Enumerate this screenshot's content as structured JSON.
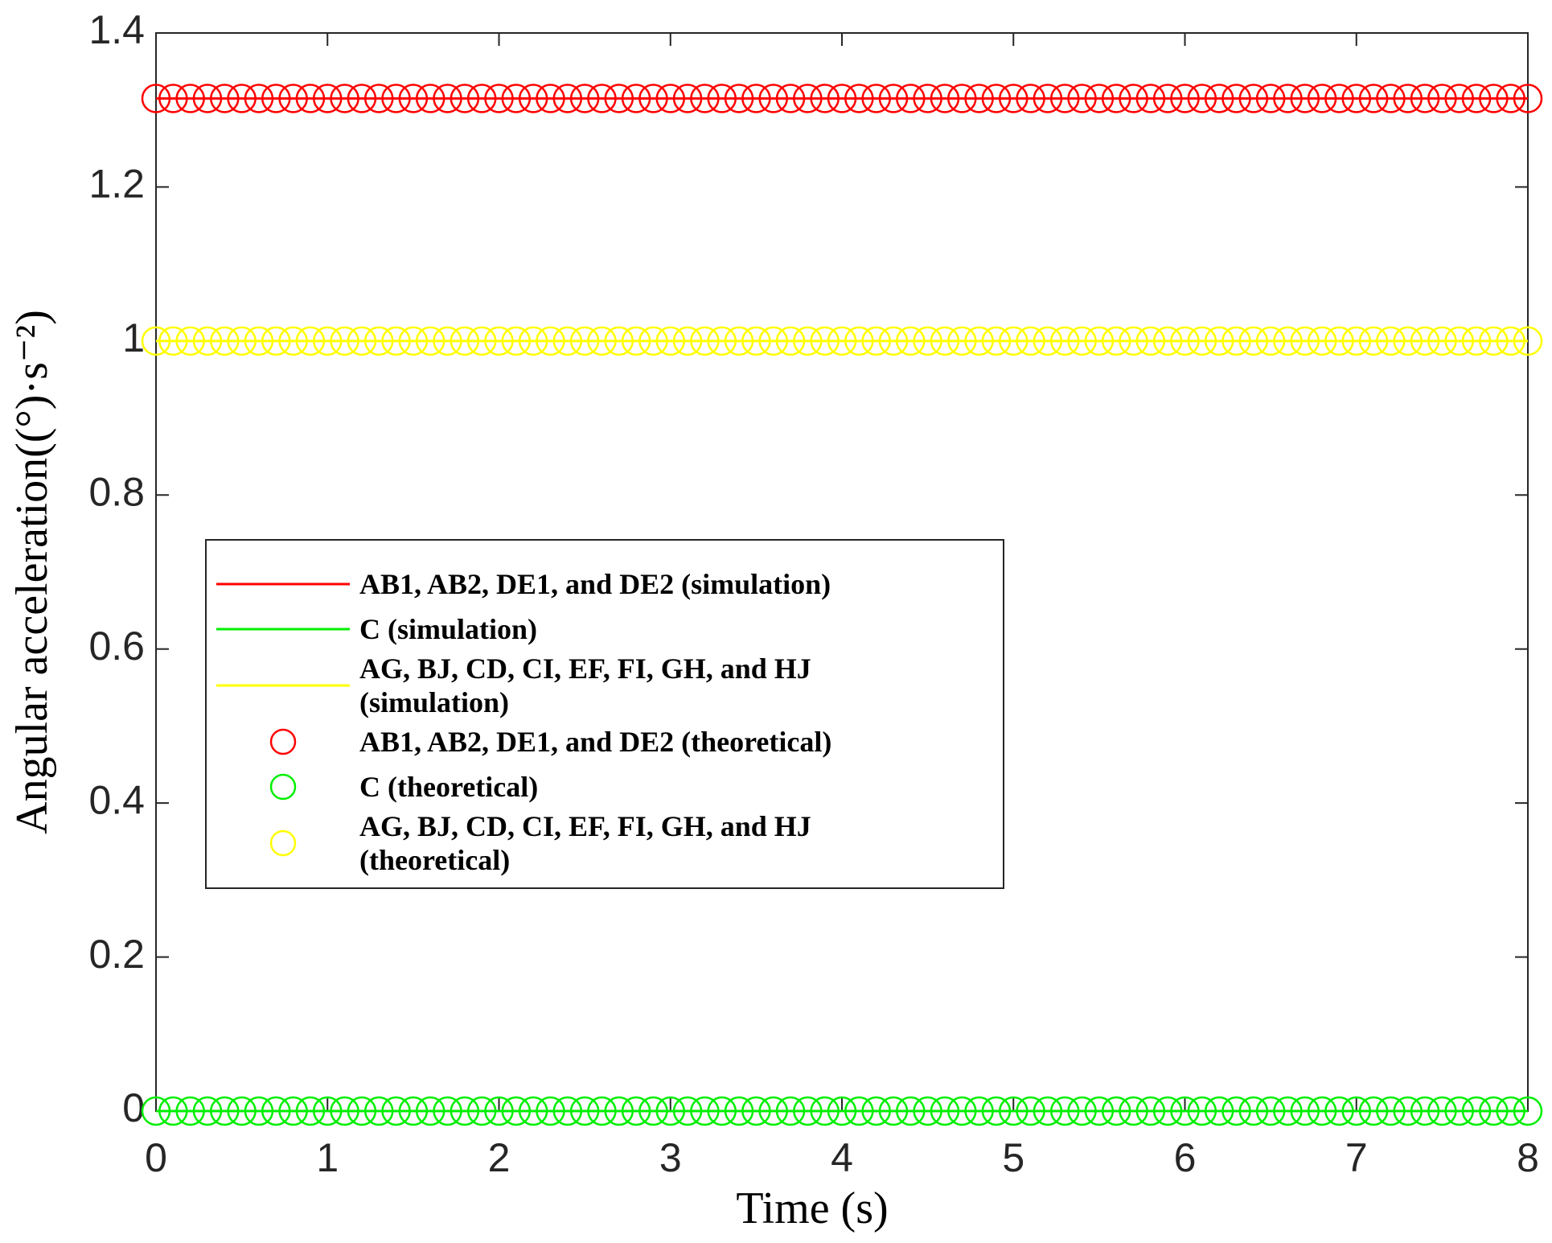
{
  "chart_data": {
    "type": "line",
    "xlabel": "Time (s)",
    "ylabel": "Angular acceleration((°)·s⁻²)",
    "xlim": [
      0,
      8
    ],
    "ylim": [
      0,
      1.4
    ],
    "xticks": [
      0,
      1,
      2,
      3,
      4,
      5,
      6,
      7,
      8
    ],
    "yticks": [
      0,
      0.2,
      0.4,
      0.6,
      0.8,
      1,
      1.2,
      1.4
    ],
    "legend": "middle-left",
    "x": [
      0,
      0.1,
      0.2,
      0.3,
      0.4,
      0.5,
      0.6,
      0.7,
      0.8,
      0.9,
      1,
      1.1,
      1.2,
      1.3,
      1.4,
      1.5,
      1.6,
      1.7,
      1.8,
      1.9,
      2,
      2.1,
      2.2,
      2.3,
      2.4,
      2.5,
      2.6,
      2.7,
      2.8,
      2.9,
      3,
      3.1,
      3.2,
      3.3,
      3.4,
      3.5,
      3.6,
      3.7,
      3.8,
      3.9,
      4,
      4.1,
      4.2,
      4.3,
      4.4,
      4.5,
      4.6,
      4.7,
      4.8,
      4.9,
      5,
      5.1,
      5.2,
      5.3,
      5.4,
      5.5,
      5.6,
      5.7,
      5.8,
      5.9,
      6,
      6.1,
      6.2,
      6.3,
      6.4,
      6.5,
      6.6,
      6.7,
      6.8,
      6.9,
      7,
      7.1,
      7.2,
      7.3,
      7.4,
      7.5,
      7.6,
      7.7,
      7.8,
      7.9,
      8
    ],
    "series": [
      {
        "name": "AB1, AB2, DE1, and DE2 (simulation)",
        "color": "#ff0000",
        "mode": "line",
        "values": [
          1.315,
          1.315,
          1.315,
          1.315,
          1.315,
          1.315,
          1.315,
          1.315,
          1.315,
          1.315,
          1.315,
          1.315,
          1.315,
          1.315,
          1.315,
          1.315,
          1.315,
          1.315,
          1.315,
          1.315,
          1.315,
          1.315,
          1.315,
          1.315,
          1.315,
          1.315,
          1.315,
          1.315,
          1.315,
          1.315,
          1.315,
          1.315,
          1.315,
          1.315,
          1.315,
          1.315,
          1.315,
          1.315,
          1.315,
          1.315,
          1.315,
          1.315,
          1.315,
          1.315,
          1.315,
          1.315,
          1.315,
          1.315,
          1.315,
          1.315,
          1.315,
          1.315,
          1.315,
          1.315,
          1.315,
          1.315,
          1.315,
          1.315,
          1.315,
          1.315,
          1.315,
          1.315,
          1.315,
          1.315,
          1.315,
          1.315,
          1.315,
          1.315,
          1.315,
          1.315,
          1.315,
          1.315,
          1.315,
          1.315,
          1.315,
          1.315,
          1.315,
          1.315,
          1.315,
          1.315,
          1.315
        ]
      },
      {
        "name": "C (simulation)",
        "color": "#00ee00",
        "mode": "line",
        "values": [
          0,
          0,
          0,
          0,
          0,
          0,
          0,
          0,
          0,
          0,
          0,
          0,
          0,
          0,
          0,
          0,
          0,
          0,
          0,
          0,
          0,
          0,
          0,
          0,
          0,
          0,
          0,
          0,
          0,
          0,
          0,
          0,
          0,
          0,
          0,
          0,
          0,
          0,
          0,
          0,
          0,
          0,
          0,
          0,
          0,
          0,
          0,
          0,
          0,
          0,
          0,
          0,
          0,
          0,
          0,
          0,
          0,
          0,
          0,
          0,
          0,
          0,
          0,
          0,
          0,
          0,
          0,
          0,
          0,
          0,
          0,
          0,
          0,
          0,
          0,
          0,
          0,
          0,
          0,
          0,
          0
        ]
      },
      {
        "name": "AG, BJ, CD, CI, EF, FI, GH, and HJ (simulation)",
        "color": "#ffff00",
        "mode": "line",
        "values": [
          1,
          1,
          1,
          1,
          1,
          1,
          1,
          1,
          1,
          1,
          1,
          1,
          1,
          1,
          1,
          1,
          1,
          1,
          1,
          1,
          1,
          1,
          1,
          1,
          1,
          1,
          1,
          1,
          1,
          1,
          1,
          1,
          1,
          1,
          1,
          1,
          1,
          1,
          1,
          1,
          1,
          1,
          1,
          1,
          1,
          1,
          1,
          1,
          1,
          1,
          1,
          1,
          1,
          1,
          1,
          1,
          1,
          1,
          1,
          1,
          1,
          1,
          1,
          1,
          1,
          1,
          1,
          1,
          1,
          1,
          1,
          1,
          1,
          1,
          1,
          1,
          1,
          1,
          1,
          1,
          1
        ]
      },
      {
        "name": "AB1, AB2, DE1, and DE2 (theoretical)",
        "color": "#ff0000",
        "mode": "markers",
        "values": [
          1.315,
          1.315,
          1.315,
          1.315,
          1.315,
          1.315,
          1.315,
          1.315,
          1.315,
          1.315,
          1.315,
          1.315,
          1.315,
          1.315,
          1.315,
          1.315,
          1.315,
          1.315,
          1.315,
          1.315,
          1.315,
          1.315,
          1.315,
          1.315,
          1.315,
          1.315,
          1.315,
          1.315,
          1.315,
          1.315,
          1.315,
          1.315,
          1.315,
          1.315,
          1.315,
          1.315,
          1.315,
          1.315,
          1.315,
          1.315,
          1.315,
          1.315,
          1.315,
          1.315,
          1.315,
          1.315,
          1.315,
          1.315,
          1.315,
          1.315,
          1.315,
          1.315,
          1.315,
          1.315,
          1.315,
          1.315,
          1.315,
          1.315,
          1.315,
          1.315,
          1.315,
          1.315,
          1.315,
          1.315,
          1.315,
          1.315,
          1.315,
          1.315,
          1.315,
          1.315,
          1.315,
          1.315,
          1.315,
          1.315,
          1.315,
          1.315,
          1.315,
          1.315,
          1.315,
          1.315,
          1.315
        ]
      },
      {
        "name": "C (theoretical)",
        "color": "#00ee00",
        "mode": "markers",
        "values": [
          0,
          0,
          0,
          0,
          0,
          0,
          0,
          0,
          0,
          0,
          0,
          0,
          0,
          0,
          0,
          0,
          0,
          0,
          0,
          0,
          0,
          0,
          0,
          0,
          0,
          0,
          0,
          0,
          0,
          0,
          0,
          0,
          0,
          0,
          0,
          0,
          0,
          0,
          0,
          0,
          0,
          0,
          0,
          0,
          0,
          0,
          0,
          0,
          0,
          0,
          0,
          0,
          0,
          0,
          0,
          0,
          0,
          0,
          0,
          0,
          0,
          0,
          0,
          0,
          0,
          0,
          0,
          0,
          0,
          0,
          0,
          0,
          0,
          0,
          0,
          0,
          0,
          0,
          0,
          0,
          0
        ]
      },
      {
        "name": "AG, BJ, CD, CI, EF, FI, GH, and HJ (theoretical)",
        "color": "#ffff00",
        "mode": "markers",
        "values": [
          1,
          1,
          1,
          1,
          1,
          1,
          1,
          1,
          1,
          1,
          1,
          1,
          1,
          1,
          1,
          1,
          1,
          1,
          1,
          1,
          1,
          1,
          1,
          1,
          1,
          1,
          1,
          1,
          1,
          1,
          1,
          1,
          1,
          1,
          1,
          1,
          1,
          1,
          1,
          1,
          1,
          1,
          1,
          1,
          1,
          1,
          1,
          1,
          1,
          1,
          1,
          1,
          1,
          1,
          1,
          1,
          1,
          1,
          1,
          1,
          1,
          1,
          1,
          1,
          1,
          1,
          1,
          1,
          1,
          1,
          1,
          1,
          1,
          1,
          1,
          1,
          1,
          1,
          1,
          1,
          1
        ]
      }
    ]
  }
}
